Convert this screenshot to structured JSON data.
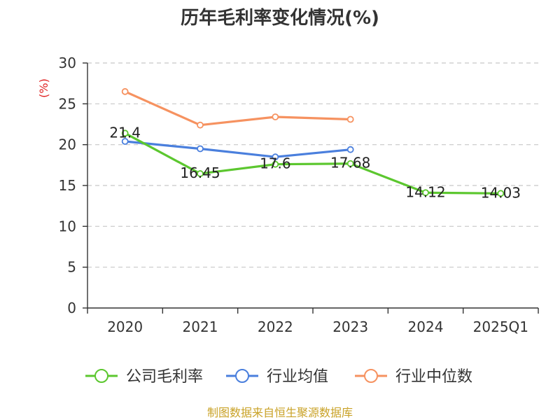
{
  "chart_data": {
    "type": "line",
    "title": "历年毛利率变化情况(%)",
    "ylabel": "(%)",
    "xlabel": "",
    "categories": [
      "2020",
      "2021",
      "2022",
      "2023",
      "2024",
      "2025Q1"
    ],
    "ylim": [
      0,
      30
    ],
    "yticks": [
      0,
      5,
      10,
      15,
      20,
      25,
      30
    ],
    "grid": true,
    "legend_position": "bottom",
    "series": [
      {
        "name": "公司毛利率",
        "color": "#5cc72f",
        "values": [
          21.4,
          16.45,
          17.6,
          17.68,
          14.12,
          14.03
        ],
        "labels": [
          "21.4",
          "16.45",
          "17.6",
          "17.68",
          "14.12",
          "14.03"
        ]
      },
      {
        "name": "行业均值",
        "color": "#4a7fdd",
        "values": [
          20.4,
          19.5,
          18.5,
          19.4,
          null,
          null
        ]
      },
      {
        "name": "行业中位数",
        "color": "#f69260",
        "values": [
          26.5,
          22.4,
          23.4,
          23.1,
          null,
          null
        ]
      }
    ],
    "source": "制图数据来自恒生聚源数据库"
  },
  "colors": {
    "axis": "#333333",
    "grid": "#c8c8c8",
    "unit": "#e02020",
    "source": "#c9a227"
  }
}
